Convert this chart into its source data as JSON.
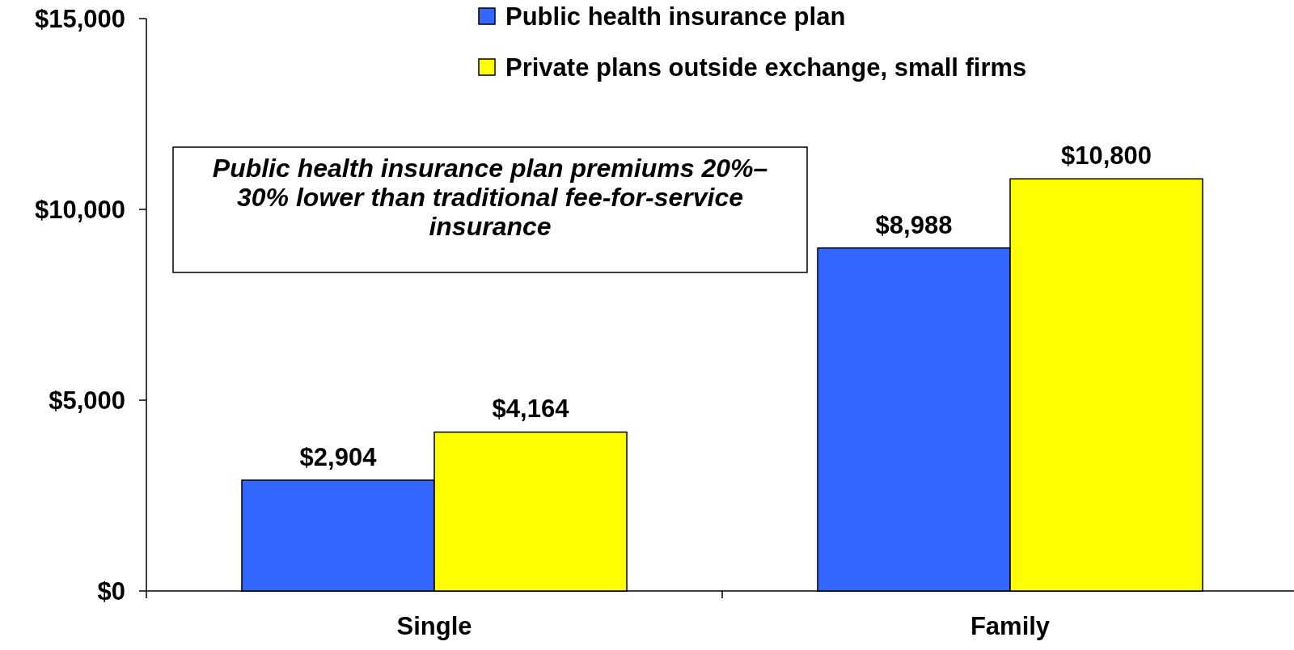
{
  "chart_data": {
    "type": "bar",
    "categories": [
      "Single",
      "Family"
    ],
    "series": [
      {
        "name": "Public health insurance plan",
        "color": "#3366ff",
        "values": [
          2904,
          8988
        ],
        "value_labels": [
          "$2,904",
          "$8,988"
        ]
      },
      {
        "name": "Private plans outside exchange, small firms",
        "color": "#ffff00",
        "values": [
          4164,
          10800
        ],
        "value_labels": [
          "$4,164",
          "$10,800"
        ]
      }
    ],
    "ylim": [
      0,
      15000
    ],
    "yticks": [
      {
        "value": 0,
        "label": "$0"
      },
      {
        "value": 5000,
        "label": "$5,000"
      },
      {
        "value": 10000,
        "label": "$10,000"
      },
      {
        "value": 15000,
        "label": "$15,000"
      }
    ],
    "annotations": [
      "Public health insurance plan premiums 20%–30% lower than traditional fee-for-service insurance"
    ],
    "legend": "top",
    "grid": false
  }
}
